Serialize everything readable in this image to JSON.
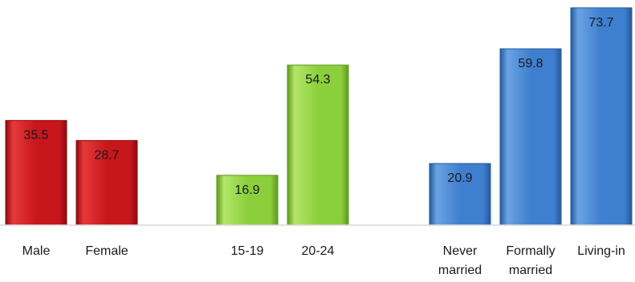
{
  "chart_data": {
    "type": "bar",
    "title": "",
    "xlabel": "",
    "ylabel": "",
    "ylim": [
      0,
      75
    ],
    "grid": false,
    "legend": "none",
    "groups": [
      {
        "color": "#c8161d",
        "color_light": "#e53a3a",
        "color_dark": "#8c0b10",
        "bars": [
          {
            "category": [
              "Male"
            ],
            "value": 35.5,
            "label": "35.5"
          },
          {
            "category": [
              "Female"
            ],
            "value": 28.7,
            "label": "28.7"
          }
        ]
      },
      {
        "color": "#8ccf3c",
        "color_light": "#b2e66a",
        "color_dark": "#5e9a1e",
        "bars": [
          {
            "category": [
              "15-19"
            ],
            "value": 16.9,
            "label": "16.9"
          },
          {
            "category": [
              "20-24"
            ],
            "value": 54.3,
            "label": "54.3"
          }
        ]
      },
      {
        "color": "#3f7fcf",
        "color_light": "#6aa3e3",
        "color_dark": "#245a9c",
        "bars": [
          {
            "category": [
              "Never",
              "married"
            ],
            "value": 20.9,
            "label": "20.9"
          },
          {
            "category": [
              "Formally",
              "married"
            ],
            "value": 59.8,
            "label": "59.8"
          },
          {
            "category": [
              "Living-in"
            ],
            "value": 73.7,
            "label": "73.7"
          }
        ]
      }
    ]
  }
}
